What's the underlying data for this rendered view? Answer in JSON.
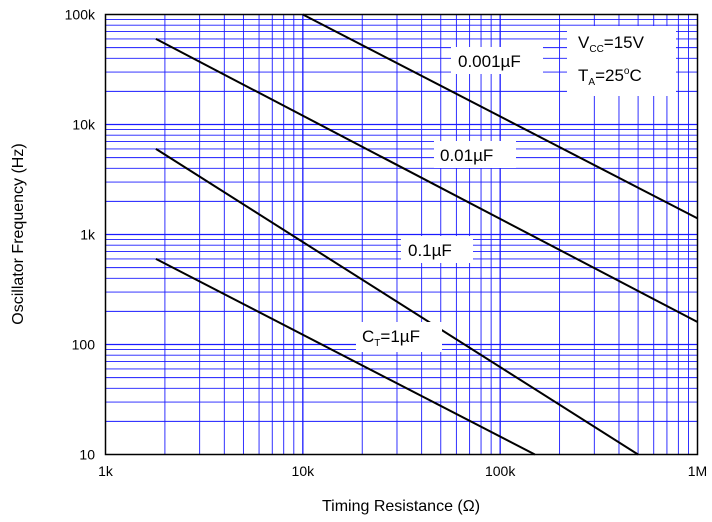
{
  "chart_data": {
    "type": "line",
    "title": "",
    "xlabel": "Timing Resistance (Ω)",
    "ylabel": "Oscillator Frequency (Hz)",
    "x_scale": "log",
    "y_scale": "log",
    "xlim": [
      1000,
      1000000
    ],
    "ylim": [
      10,
      100000
    ],
    "x_ticks": [
      {
        "value": 1000,
        "label": "1k"
      },
      {
        "value": 10000,
        "label": "10k"
      },
      {
        "value": 100000,
        "label": "100k"
      },
      {
        "value": 1000000,
        "label": "1M"
      }
    ],
    "y_ticks": [
      {
        "value": 10,
        "label": "10"
      },
      {
        "value": 100,
        "label": "100"
      },
      {
        "value": 1000,
        "label": "1k"
      },
      {
        "value": 10000,
        "label": "10k"
      },
      {
        "value": 100000,
        "label": "100k"
      }
    ],
    "grid": true,
    "legend": "none",
    "colors": {
      "grid": "#1a1aff",
      "line": "#000000",
      "frame": "#000000"
    },
    "series": [
      {
        "name": "CT=1µF",
        "x": [
          1800,
          150000
        ],
        "y": [
          600,
          10
        ]
      },
      {
        "name": "0.1µF",
        "x": [
          1800,
          500000
        ],
        "y": [
          6000,
          10
        ]
      },
      {
        "name": "0.01µF",
        "x": [
          1800,
          1000000
        ],
        "y": [
          60000,
          160
        ]
      },
      {
        "name": "0.001µF",
        "x": [
          10000,
          1000000
        ],
        "y": [
          100000,
          1400
        ]
      }
    ],
    "annotations": {
      "conditions": {
        "vcc": {
          "main": "V",
          "sub": "CC",
          "rest": "=15V"
        },
        "ta": {
          "main": "T",
          "sub": "A",
          "rest": "=25",
          "sup": "o",
          "unit": "C"
        }
      },
      "curve_labels": [
        {
          "text": "0.001µF"
        },
        {
          "text": "0.01µF"
        },
        {
          "text": "0.1µF"
        },
        {
          "main": "C",
          "sub": "T",
          "rest": "=1µF"
        }
      ]
    }
  }
}
